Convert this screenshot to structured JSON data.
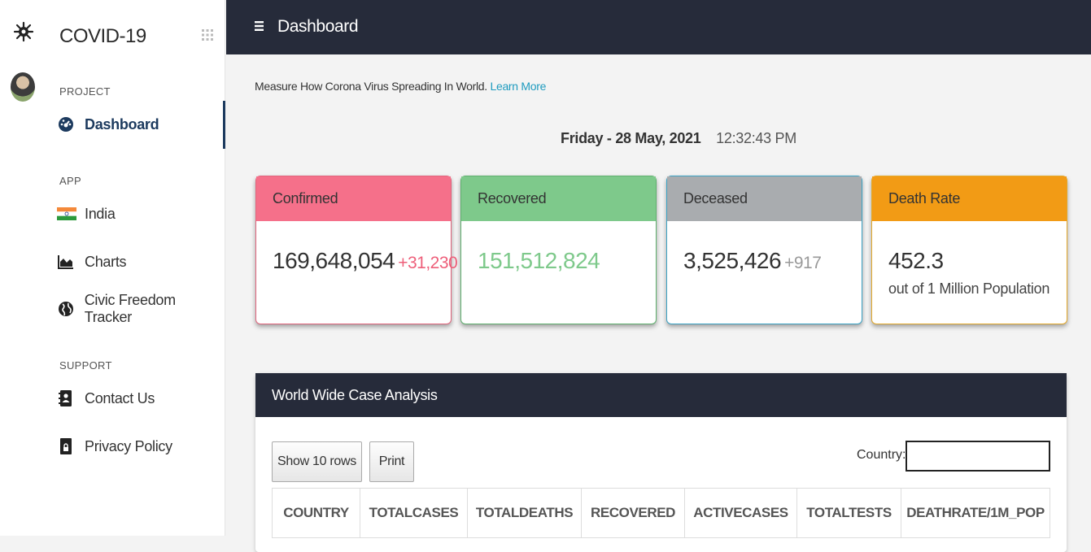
{
  "sidebar": {
    "brand": "COVID-19",
    "sections": {
      "project": "PROJECT",
      "app": "APP",
      "support": "SUPPORT"
    },
    "items": {
      "dashboard": "Dashboard",
      "india": "India",
      "charts": "Charts",
      "civic": "Civic Freedom Tracker",
      "contact": "Contact Us",
      "privacy": "Privacy Policy"
    }
  },
  "topbar": {
    "title": "Dashboard"
  },
  "intro": {
    "text": "Measure How Corona Virus Spreading In World. ",
    "link": "Learn More"
  },
  "datetime": {
    "date": "Friday - 28 May, 2021",
    "time": "12:32:43 PM"
  },
  "cards": {
    "confirmed": {
      "title": "Confirmed",
      "value": "169,648,054",
      "delta": "+31,230",
      "color": "#f5708a"
    },
    "recovered": {
      "title": "Recovered",
      "value": "151,512,824",
      "color": "#7ec98b"
    },
    "deceased": {
      "title": "Deceased",
      "value": "3,525,426",
      "delta": "+917",
      "color": "#a9acaf"
    },
    "deathrate": {
      "title": "Death Rate",
      "value": "452.3",
      "sub": "out of 1 Million Population",
      "color": "#f29b15"
    }
  },
  "table": {
    "title": "World Wide Case Analysis",
    "show_rows": "Show 10 rows",
    "print": "Print",
    "country_label": "Country:",
    "columns": [
      "COUNTRY",
      "TOTALCASES",
      "TOTALDEATHS",
      "RECOVERED",
      "ACTIVECASES",
      "TOTALTESTS",
      "DEATHRATE/1M_POP"
    ]
  }
}
